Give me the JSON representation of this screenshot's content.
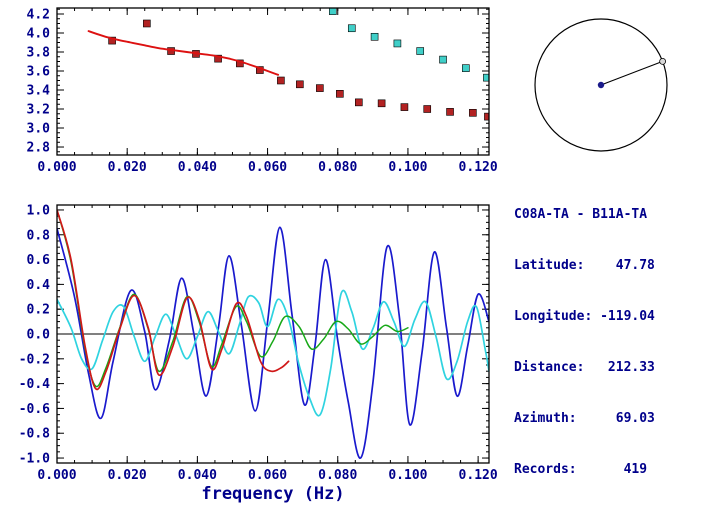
{
  "station_info": {
    "lines": [
      "C08A-TA - B11A-TA",
      "Latitude:    47.78",
      "Longitude: -119.04",
      "Distance:   212.33",
      "Azimuth:     69.03",
      "Records:      419"
    ]
  },
  "bottom_axis_label": "frequency (Hz)",
  "colors": {
    "text": "#00008B",
    "frame": "#000000",
    "red_squares": "#b22222",
    "red_line": "#dd1111",
    "cyan_squares": "#40cfc8",
    "wave_blue": "#1a1acd",
    "wave_cyan": "#2fd3e0",
    "wave_green": "#17a817",
    "wave_red": "#d01818"
  },
  "azimuth_dial": {
    "azimuth_deg": 69.03
  },
  "chart_data": [
    {
      "id": "dispersion",
      "type": "scatter",
      "title": "",
      "xlabel": "",
      "ylabel": "",
      "xlim": [
        0,
        0.1231
      ],
      "ylim": [
        2.716,
        4.263
      ],
      "x_minor_step": 0.005,
      "y_minor_step": 0.05,
      "x_ticks": [
        {
          "v": 0.0,
          "label": "0.000"
        },
        {
          "v": 0.02,
          "label": "0.020"
        },
        {
          "v": 0.04,
          "label": "0.040"
        },
        {
          "v": 0.06,
          "label": "0.060"
        },
        {
          "v": 0.08,
          "label": "0.080"
        },
        {
          "v": 0.1,
          "label": "0.100"
        },
        {
          "v": 0.12,
          "label": "0.120"
        }
      ],
      "y_ticks": [
        {
          "v": 2.8,
          "label": "2.8"
        },
        {
          "v": 3.0,
          "label": "3.0"
        },
        {
          "v": 3.2,
          "label": "3.2"
        },
        {
          "v": 3.4,
          "label": "3.4"
        },
        {
          "v": 3.6,
          "label": "3.6"
        },
        {
          "v": 3.8,
          "label": "3.8"
        },
        {
          "v": 4.0,
          "label": "4.0"
        },
        {
          "v": 4.2,
          "label": "4.2"
        }
      ],
      "series": [
        {
          "name": "measured-dispersion-red-squares",
          "marker": "square",
          "color": "#b22222",
          "points": [
            [
              0.0157,
              3.92
            ],
            [
              0.0256,
              4.1
            ],
            [
              0.0325,
              3.81
            ],
            [
              0.0396,
              3.78
            ],
            [
              0.0459,
              3.73
            ],
            [
              0.0521,
              3.68
            ],
            [
              0.0578,
              3.61
            ],
            [
              0.0638,
              3.5
            ],
            [
              0.0692,
              3.46
            ],
            [
              0.0749,
              3.42
            ],
            [
              0.0806,
              3.36
            ],
            [
              0.086,
              3.27
            ],
            [
              0.0925,
              3.26
            ],
            [
              0.099,
              3.22
            ],
            [
              0.1055,
              3.2
            ],
            [
              0.112,
              3.17
            ],
            [
              0.1185,
              3.16
            ],
            [
              0.1228,
              3.12
            ]
          ]
        },
        {
          "name": "reference-dispersion-red-line",
          "color": "#dd1111",
          "width": 1.9,
          "points": [
            [
              0.009,
              4.02
            ],
            [
              0.013,
              3.97
            ],
            [
              0.017,
              3.93
            ],
            [
              0.021,
              3.9
            ],
            [
              0.025,
              3.87
            ],
            [
              0.029,
              3.84
            ],
            [
              0.033,
              3.82
            ],
            [
              0.037,
              3.8
            ],
            [
              0.041,
              3.78
            ],
            [
              0.045,
              3.76
            ],
            [
              0.049,
              3.73
            ],
            [
              0.053,
              3.69
            ],
            [
              0.057,
              3.64
            ],
            [
              0.06,
              3.6
            ],
            [
              0.063,
              3.56
            ]
          ]
        },
        {
          "name": "secondary-dispersion-cyan-squares",
          "marker": "square",
          "color": "#40cfc8",
          "points": [
            [
              0.0786,
              4.23
            ],
            [
              0.084,
              4.05
            ],
            [
              0.0905,
              3.96
            ],
            [
              0.097,
              3.89
            ],
            [
              0.1035,
              3.81
            ],
            [
              0.11,
              3.72
            ],
            [
              0.1165,
              3.63
            ],
            [
              0.1225,
              3.53
            ]
          ]
        }
      ]
    },
    {
      "id": "waveform",
      "type": "line",
      "title": "",
      "xlabel": "frequency (Hz)",
      "ylabel": "",
      "xlim": [
        0,
        0.1231
      ],
      "ylim": [
        -1.04,
        1.04
      ],
      "zero_line": true,
      "x_minor_step": 0.005,
      "y_minor_step": 0.05,
      "x_ticks": [
        {
          "v": 0.0,
          "label": "0.000"
        },
        {
          "v": 0.02,
          "label": "0.020"
        },
        {
          "v": 0.04,
          "label": "0.040"
        },
        {
          "v": 0.06,
          "label": "0.060"
        },
        {
          "v": 0.08,
          "label": "0.080"
        },
        {
          "v": 0.1,
          "label": "0.100"
        },
        {
          "v": 0.12,
          "label": "0.120"
        }
      ],
      "y_ticks": [
        {
          "v": 1.0,
          "label": "1.0"
        },
        {
          "v": 0.8,
          "label": "0.8"
        },
        {
          "v": 0.6,
          "label": "0.6"
        },
        {
          "v": 0.4,
          "label": "0.4"
        },
        {
          "v": 0.2,
          "label": "0.2"
        },
        {
          "v": 0.0,
          "label": "0.0"
        },
        {
          "v": -0.2,
          "label": "-0.2"
        },
        {
          "v": -0.4,
          "label": "-0.4"
        },
        {
          "v": -0.6,
          "label": "-0.6"
        },
        {
          "v": -0.8,
          "label": "-0.8"
        },
        {
          "v": -1.0,
          "label": "-1.0"
        }
      ],
      "series": [
        {
          "name": "waveform-blue",
          "color": "#1a1acd",
          "width": 1.7,
          "points": [
            [
              0,
              0.85
            ],
            [
              0.005,
              0.3
            ],
            [
              0.009,
              -0.32
            ],
            [
              0.0125,
              -0.68
            ],
            [
              0.016,
              -0.22
            ],
            [
              0.021,
              0.35
            ],
            [
              0.025,
              0.02
            ],
            [
              0.028,
              -0.45
            ],
            [
              0.032,
              -0.05
            ],
            [
              0.0355,
              0.45
            ],
            [
              0.039,
              0.0
            ],
            [
              0.0425,
              -0.5
            ],
            [
              0.046,
              0.05
            ],
            [
              0.049,
              0.63
            ],
            [
              0.0525,
              0.08
            ],
            [
              0.0565,
              -0.62
            ],
            [
              0.06,
              0.1
            ],
            [
              0.0635,
              0.86
            ],
            [
              0.067,
              0.15
            ],
            [
              0.0705,
              -0.57
            ],
            [
              0.0735,
              -0.1
            ],
            [
              0.0765,
              0.6
            ],
            [
              0.08,
              -0.05
            ],
            [
              0.083,
              -0.55
            ],
            [
              0.0865,
              -1.0
            ],
            [
              0.09,
              -0.4
            ],
            [
              0.094,
              0.7
            ],
            [
              0.0975,
              0.15
            ],
            [
              0.1005,
              -0.73
            ],
            [
              0.104,
              -0.15
            ],
            [
              0.1075,
              0.66
            ],
            [
              0.111,
              0.05
            ],
            [
              0.114,
              -0.5
            ],
            [
              0.117,
              -0.1
            ],
            [
              0.12,
              0.32
            ],
            [
              0.1231,
              0.1
            ]
          ]
        },
        {
          "name": "waveform-cyan",
          "color": "#2fd3e0",
          "width": 1.7,
          "points": [
            [
              0,
              0.28
            ],
            [
              0.004,
              0.05
            ],
            [
              0.007,
              -0.2
            ],
            [
              0.01,
              -0.28
            ],
            [
              0.013,
              -0.05
            ],
            [
              0.016,
              0.18
            ],
            [
              0.019,
              0.22
            ],
            [
              0.022,
              -0.02
            ],
            [
              0.025,
              -0.22
            ],
            [
              0.028,
              -0.02
            ],
            [
              0.031,
              0.16
            ],
            [
              0.034,
              -0.02
            ],
            [
              0.037,
              -0.2
            ],
            [
              0.04,
              -0.02
            ],
            [
              0.043,
              0.18
            ],
            [
              0.046,
              0.02
            ],
            [
              0.049,
              -0.16
            ],
            [
              0.052,
              0.08
            ],
            [
              0.0545,
              0.3
            ],
            [
              0.0575,
              0.25
            ],
            [
              0.06,
              0.06
            ],
            [
              0.063,
              0.28
            ],
            [
              0.066,
              0.12
            ],
            [
              0.069,
              -0.25
            ],
            [
              0.072,
              -0.52
            ],
            [
              0.075,
              -0.65
            ],
            [
              0.078,
              -0.28
            ],
            [
              0.081,
              0.33
            ],
            [
              0.084,
              0.18
            ],
            [
              0.087,
              -0.12
            ],
            [
              0.09,
              0.04
            ],
            [
              0.093,
              0.26
            ],
            [
              0.096,
              0.1
            ],
            [
              0.099,
              -0.1
            ],
            [
              0.102,
              0.12
            ],
            [
              0.105,
              0.26
            ],
            [
              0.108,
              -0.02
            ],
            [
              0.111,
              -0.36
            ],
            [
              0.114,
              -0.22
            ],
            [
              0.117,
              0.1
            ],
            [
              0.1195,
              0.22
            ],
            [
              0.122,
              -0.12
            ],
            [
              0.1231,
              -0.3
            ]
          ]
        },
        {
          "name": "waveform-green",
          "color": "#17a817",
          "width": 1.5,
          "points": [
            [
              0,
              1.0
            ],
            [
              0.004,
              0.58
            ],
            [
              0.008,
              -0.12
            ],
            [
              0.011,
              -0.42
            ],
            [
              0.014,
              -0.27
            ],
            [
              0.018,
              0.06
            ],
            [
              0.022,
              0.32
            ],
            [
              0.026,
              0.04
            ],
            [
              0.029,
              -0.3
            ],
            [
              0.033,
              -0.06
            ],
            [
              0.037,
              0.3
            ],
            [
              0.0405,
              0.1
            ],
            [
              0.044,
              -0.26
            ],
            [
              0.047,
              -0.08
            ],
            [
              0.051,
              0.22
            ],
            [
              0.054,
              0.1
            ],
            [
              0.058,
              -0.18
            ],
            [
              0.0615,
              -0.06
            ],
            [
              0.065,
              0.14
            ],
            [
              0.069,
              0.06
            ],
            [
              0.0725,
              -0.12
            ],
            [
              0.076,
              -0.04
            ],
            [
              0.0795,
              0.1
            ],
            [
              0.083,
              0.04
            ],
            [
              0.0865,
              -0.08
            ],
            [
              0.09,
              -0.02
            ],
            [
              0.0935,
              0.07
            ],
            [
              0.097,
              0.02
            ],
            [
              0.1,
              0.05
            ]
          ]
        },
        {
          "name": "waveform-red",
          "color": "#d01818",
          "width": 1.7,
          "points": [
            [
              0,
              1.0
            ],
            [
              0.004,
              0.6
            ],
            [
              0.008,
              -0.1
            ],
            [
              0.011,
              -0.44
            ],
            [
              0.014,
              -0.3
            ],
            [
              0.018,
              0.05
            ],
            [
              0.022,
              0.31
            ],
            [
              0.026,
              0.05
            ],
            [
              0.029,
              -0.33
            ],
            [
              0.033,
              -0.1
            ],
            [
              0.037,
              0.29
            ],
            [
              0.0405,
              0.12
            ],
            [
              0.044,
              -0.28
            ],
            [
              0.047,
              -0.12
            ],
            [
              0.051,
              0.24
            ],
            [
              0.054,
              0.14
            ],
            [
              0.058,
              -0.22
            ],
            [
              0.061,
              -0.3
            ],
            [
              0.064,
              -0.27
            ],
            [
              0.066,
              -0.22
            ]
          ]
        }
      ]
    }
  ]
}
